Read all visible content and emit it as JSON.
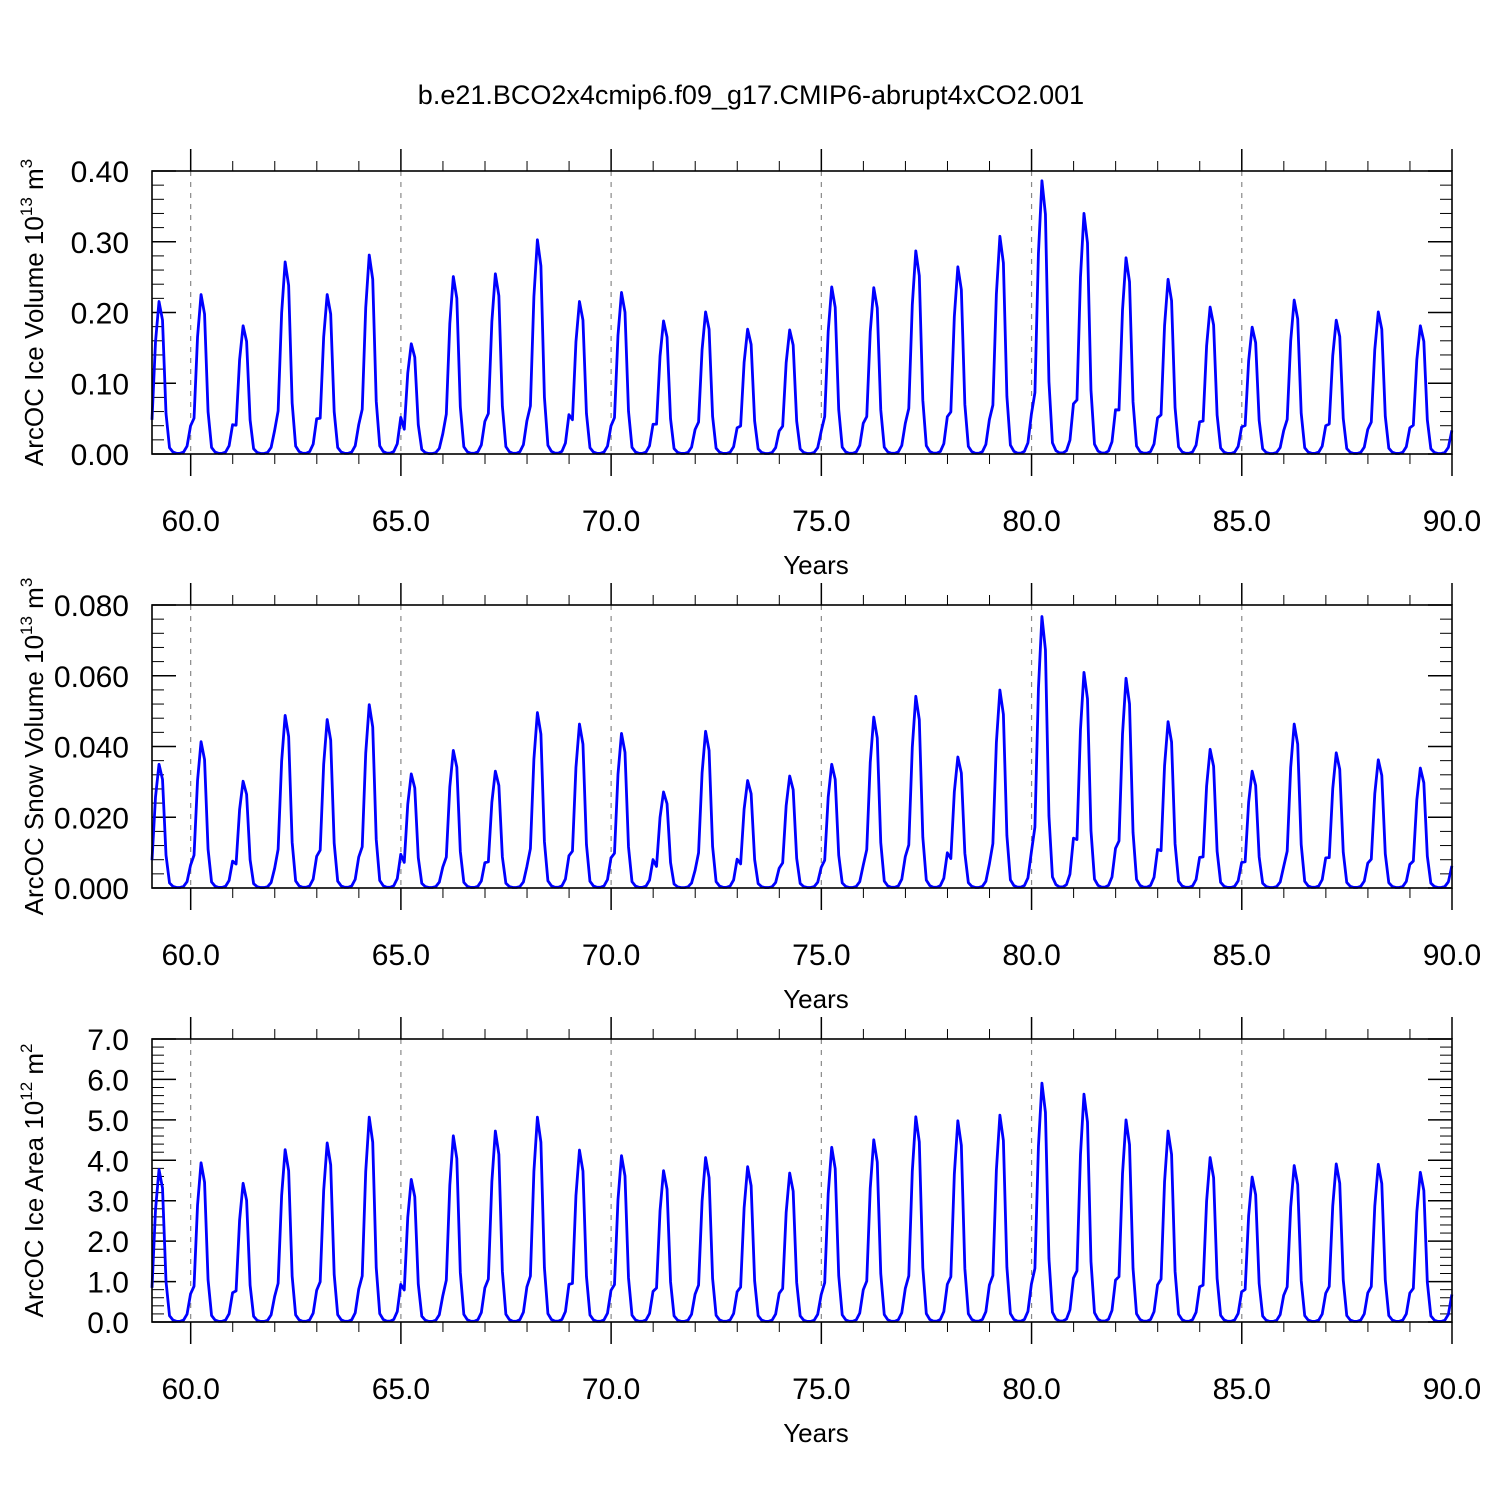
{
  "figure": {
    "title": "b.e21.BCO2x4cmip6.f09_g17.CMIP6-abrupt4xCO2.001"
  },
  "chart_data": [
    {
      "type": "line",
      "name": "ice-volume",
      "ylabel": "ArcOC Ice Volume 10",
      "ylabel_sup": "13",
      "ylabel_unit": " m",
      "ylabel_unit_sup": "3",
      "xlabel": "Years",
      "xlim": [
        59.08,
        90.0
      ],
      "ylim": [
        0.0,
        0.4
      ],
      "yticks": [
        0.0,
        0.1,
        0.2,
        0.3,
        0.4
      ],
      "ytick_labels": [
        "0.00",
        "0.10",
        "0.20",
        "0.30",
        "0.40"
      ],
      "xticks": [
        60,
        65,
        70,
        75,
        80,
        85,
        90
      ],
      "xtick_labels": [
        "60.0",
        "65.0",
        "70.0",
        "75.0",
        "80.0",
        "85.0",
        "90.0"
      ],
      "grid": "vertical-dashed-at-major-ticks",
      "line_color": "#0000ff",
      "series": [
        {
          "name": "Ice Volume",
          "annual_peaks": [
            0.22,
            0.23,
            0.185,
            0.277,
            0.23,
            0.287,
            0.159,
            0.256,
            0.26,
            0.309,
            0.22,
            0.233,
            0.192,
            0.205,
            0.18,
            0.179,
            0.241,
            0.24,
            0.293,
            0.27,
            0.314,
            0.394,
            0.347,
            0.283,
            0.252,
            0.212,
            0.183,
            0.222,
            0.193,
            0.205,
            0.185
          ]
        }
      ]
    },
    {
      "type": "line",
      "name": "snow-volume",
      "ylabel": "ArcOC Snow Volume 10",
      "ylabel_sup": "13",
      "ylabel_unit": " m",
      "ylabel_unit_sup": "3",
      "xlabel": "Years",
      "xlim": [
        59.08,
        90.0
      ],
      "ylim": [
        0.0,
        0.08
      ],
      "yticks": [
        0.0,
        0.02,
        0.04,
        0.06,
        0.08
      ],
      "ytick_labels": [
        "0.000",
        "0.020",
        "0.040",
        "0.060",
        "0.080"
      ],
      "xticks": [
        60,
        65,
        70,
        75,
        80,
        85,
        90
      ],
      "xtick_labels": [
        "60.0",
        "65.0",
        "70.0",
        "75.0",
        "80.0",
        "85.0",
        "90.0"
      ],
      "grid": "vertical-dashed-at-major-ticks",
      "line_color": "#0000ff",
      "series": [
        {
          "name": "Snow Volume",
          "annual_peaks": [
            0.0357,
            0.0422,
            0.0308,
            0.0498,
            0.0486,
            0.0529,
            0.0329,
            0.0397,
            0.0337,
            0.0506,
            0.0473,
            0.0446,
            0.0277,
            0.0452,
            0.031,
            0.0323,
            0.0357,
            0.0493,
            0.0553,
            0.0378,
            0.0571,
            0.0783,
            0.0622,
            0.0605,
            0.048,
            0.04,
            0.0337,
            0.0473,
            0.039,
            0.037,
            0.0346
          ]
        }
      ]
    },
    {
      "type": "line",
      "name": "ice-area",
      "ylabel": "ArcOC Ice Area 10",
      "ylabel_sup": "12",
      "ylabel_unit": " m",
      "ylabel_unit_sup": "2",
      "xlabel": "Years",
      "xlim": [
        59.08,
        90.0
      ],
      "ylim": [
        0.0,
        7.0
      ],
      "yticks": [
        0,
        1,
        2,
        3,
        4,
        5,
        6,
        7
      ],
      "ytick_labels": [
        "0.0",
        "1.0",
        "2.0",
        "3.0",
        "4.0",
        "5.0",
        "6.0",
        "7.0"
      ],
      "xticks": [
        60,
        65,
        70,
        75,
        80,
        85,
        90
      ],
      "xtick_labels": [
        "60.0",
        "65.0",
        "70.0",
        "75.0",
        "80.0",
        "85.0",
        "90.0"
      ],
      "grid": "vertical-dashed-at-major-ticks",
      "line_color": "#0000ff",
      "series": [
        {
          "name": "Ice Area",
          "annual_peaks": [
            3.85,
            4.02,
            3.5,
            4.35,
            4.52,
            5.17,
            3.6,
            4.7,
            4.82,
            5.17,
            4.34,
            4.2,
            3.82,
            4.15,
            3.92,
            3.76,
            4.41,
            4.6,
            5.18,
            5.08,
            5.22,
            6.03,
            5.75,
            5.1,
            4.82,
            4.15,
            3.66,
            3.95,
            3.99,
            3.98,
            3.78
          ]
        }
      ]
    }
  ]
}
